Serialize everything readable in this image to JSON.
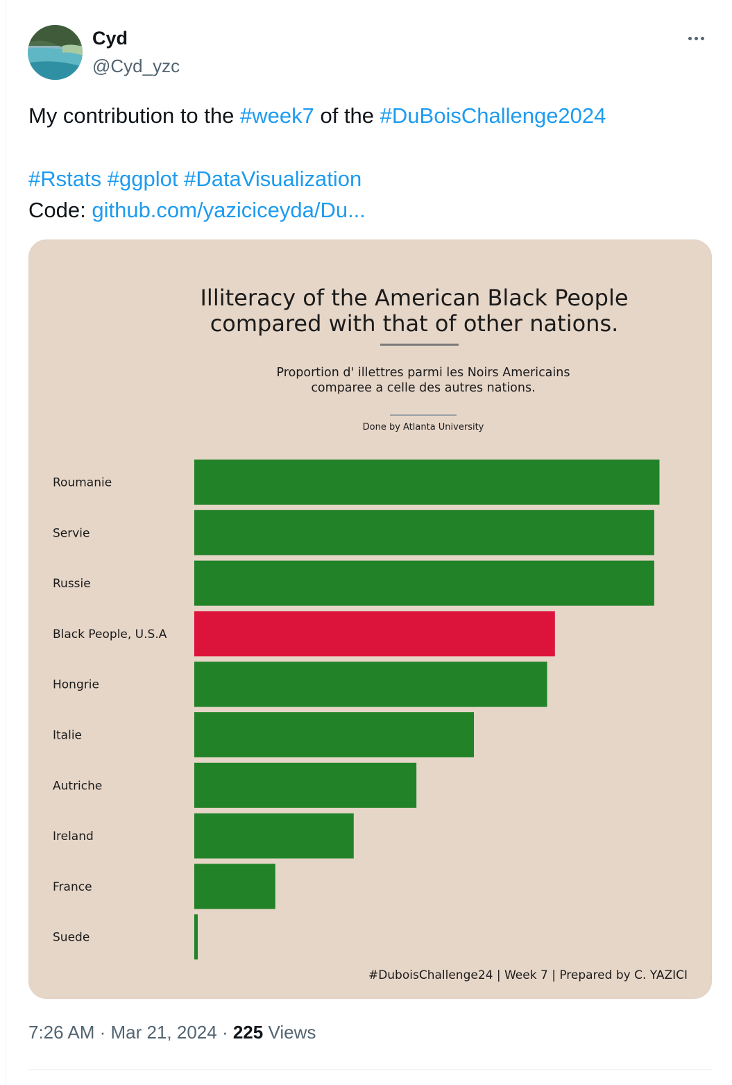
{
  "tweet": {
    "author_name": "Cyd",
    "author_handle": "@Cyd_yzc",
    "more_icon": "more-horizontal-icon",
    "text_prefix": "My contribution to the ",
    "hashtag_week": "#week7",
    "text_middle": " of the ",
    "hashtag_challenge": "#DuBoisChallenge2024",
    "hashtag_rstats": "#Rstats",
    "hashtag_ggplot": "#ggplot",
    "hashtag_dataviz": "#DataVisualization",
    "code_label": "Code: ",
    "code_link": "github.com/yaziciceyda/Du...",
    "time": "7:26 AM",
    "date": "Mar 21, 2024",
    "separator": " · ",
    "views_count": "225",
    "views_label": " Views",
    "colors": {
      "link": "#1d9bf0",
      "secondary_text": "#536471",
      "primary_text": "#0f1419"
    }
  },
  "media": {
    "background": "#e6d6c8",
    "title_line1": "Illiteracy of the American Black People",
    "title_line2": "compared with that of other nations.",
    "subtitle_line1": "Proportion d' illettres parmi les Noirs Americains",
    "subtitle_line2": "comparee a celle des autres nations.",
    "credit": "Done by Atlanta University",
    "caption": "#DuboisChallenge24 | Week 7 | Prepared by C. YAZICI"
  },
  "chart_data": {
    "type": "bar",
    "orientation": "horizontal",
    "categories": [
      "Roumanie",
      "Servie",
      "Russie",
      "Black People, U.S.A",
      "Hongrie",
      "Italie",
      "Autriche",
      "Ireland",
      "France",
      "Suede"
    ],
    "values": [
      89,
      88,
      88,
      69,
      67.5,
      53.5,
      42.5,
      30.5,
      15.5,
      0.6
    ],
    "xlim": [
      0,
      90
    ],
    "colors": {
      "default": "#228228",
      "highlight": "#dc143c"
    },
    "highlight_category": "Black People, U.S.A",
    "grid": false,
    "axes_visible": false
  }
}
